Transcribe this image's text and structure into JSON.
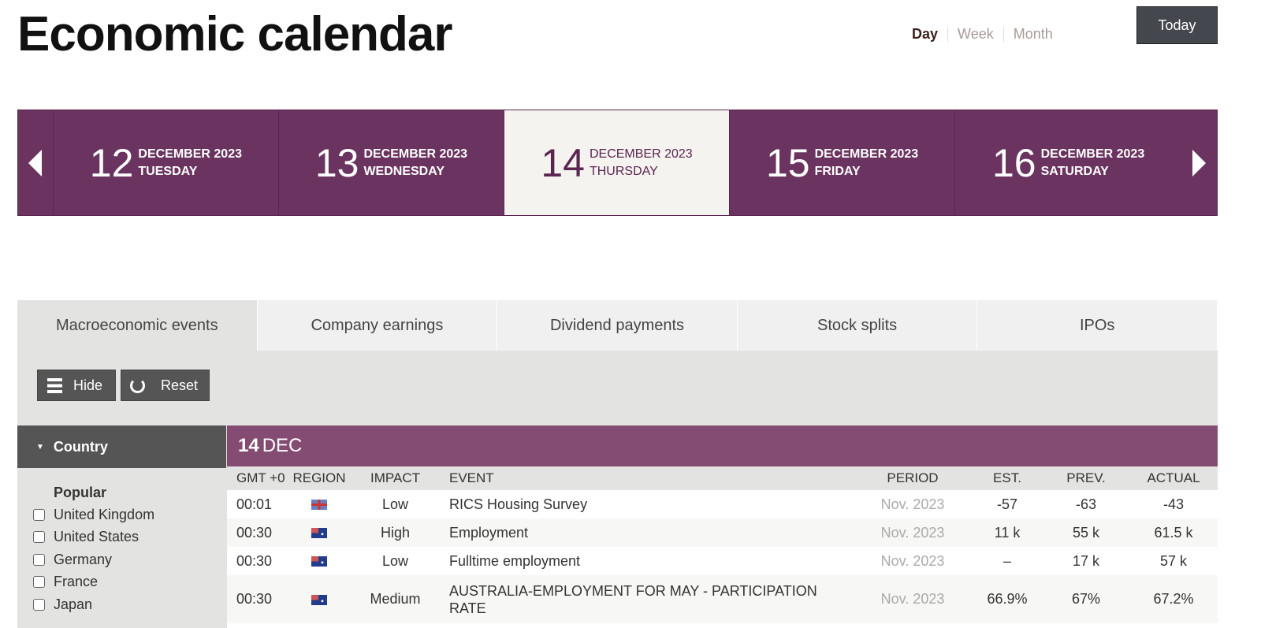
{
  "title": "Economic calendar",
  "views": [
    "Day",
    "Week",
    "Month"
  ],
  "today": "Today",
  "days": [
    {
      "num": "12",
      "month": "DECEMBER 2023",
      "weekday": "TUESDAY"
    },
    {
      "num": "13",
      "month": "DECEMBER 2023",
      "weekday": "WEDNESDAY"
    },
    {
      "num": "14",
      "month": "DECEMBER 2023",
      "weekday": "THURSDAY"
    },
    {
      "num": "15",
      "month": "DECEMBER 2023",
      "weekday": "FRIDAY"
    },
    {
      "num": "16",
      "month": "DECEMBER 2023",
      "weekday": "SATURDAY"
    }
  ],
  "tabs": [
    "Macroeconomic events",
    "Company earnings",
    "Dividend payments",
    "Stock splits",
    "IPOs"
  ],
  "buttons": {
    "hide": "Hide",
    "reset": "Reset"
  },
  "sidebar": {
    "header": "Country",
    "group": "Popular",
    "countries": [
      "United Kingdom",
      "United States",
      "Germany",
      "France",
      "Japan"
    ]
  },
  "table": {
    "date_num": "14",
    "date_mon": "DEC",
    "columns": [
      "GMT +0",
      "REGION",
      "IMPACT",
      "EVENT",
      "PERIOD",
      "EST.",
      "PREV.",
      "ACTUAL"
    ],
    "rows": [
      {
        "time": "00:01",
        "region": "uk-flag",
        "impact": "Low",
        "event": "RICS Housing Survey",
        "period": "Nov. 2023",
        "est": "-57",
        "prev": "-63",
        "actual": "-43"
      },
      {
        "time": "00:30",
        "region": "australia-flag",
        "impact": "High",
        "event": "Employment",
        "period": "Nov. 2023",
        "est": "11 k",
        "prev": "55 k",
        "actual": "61.5 k"
      },
      {
        "time": "00:30",
        "region": "australia-flag",
        "impact": "Low",
        "event": "Fulltime employment",
        "period": "Nov. 2023",
        "est": "–",
        "prev": "17 k",
        "actual": "57 k"
      },
      {
        "time": "00:30",
        "region": "australia-flag",
        "impact": "Medium",
        "event": "AUSTRALIA-EMPLOYMENT FOR MAY - PARTICIPATION RATE",
        "period": "Nov. 2023",
        "est": "66.9%",
        "prev": "67%",
        "actual": "67.2%"
      }
    ]
  },
  "colors": {
    "brand": "#6b3460",
    "date_header": "#844b73",
    "button": "#555555"
  }
}
